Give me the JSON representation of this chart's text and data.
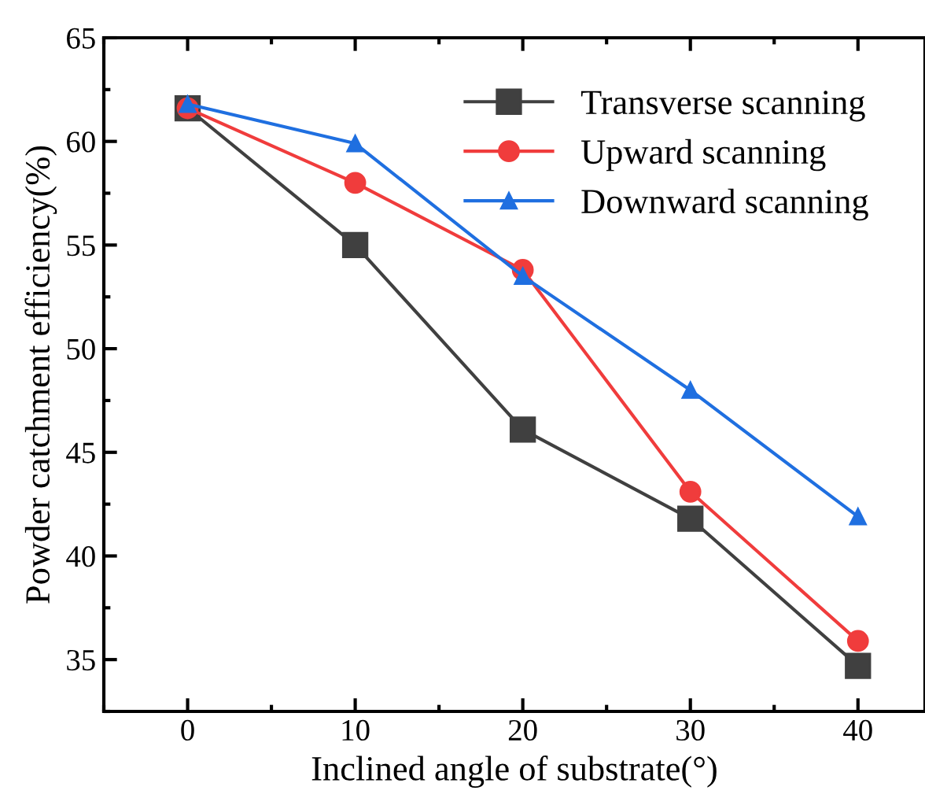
{
  "chart_data": {
    "type": "line",
    "xlabel": "Inclined angle of substrate(°)",
    "ylabel": "Powder catchment efficiency(%)",
    "x": [
      0,
      10,
      20,
      30,
      40
    ],
    "series": [
      {
        "name": "Transverse scanning",
        "color": "#404040",
        "marker": "square",
        "values": [
          61.6,
          55.0,
          46.1,
          41.8,
          34.7
        ]
      },
      {
        "name": "Upward scanning",
        "color": "#f03c3c",
        "marker": "circle",
        "values": [
          61.6,
          58.0,
          53.8,
          43.1,
          35.9
        ]
      },
      {
        "name": "Downward scanning",
        "color": "#1f6fe0",
        "marker": "triangle",
        "values": [
          61.8,
          59.9,
          53.5,
          48.0,
          41.9
        ]
      }
    ],
    "xlim": [
      -5,
      44
    ],
    "ylim": [
      32.5,
      65
    ],
    "xticks": [
      0,
      10,
      20,
      30,
      40
    ],
    "yticks": [
      35,
      40,
      45,
      50,
      55,
      60,
      65
    ],
    "grid": false,
    "legend": "top right",
    "line_style": "solid"
  }
}
